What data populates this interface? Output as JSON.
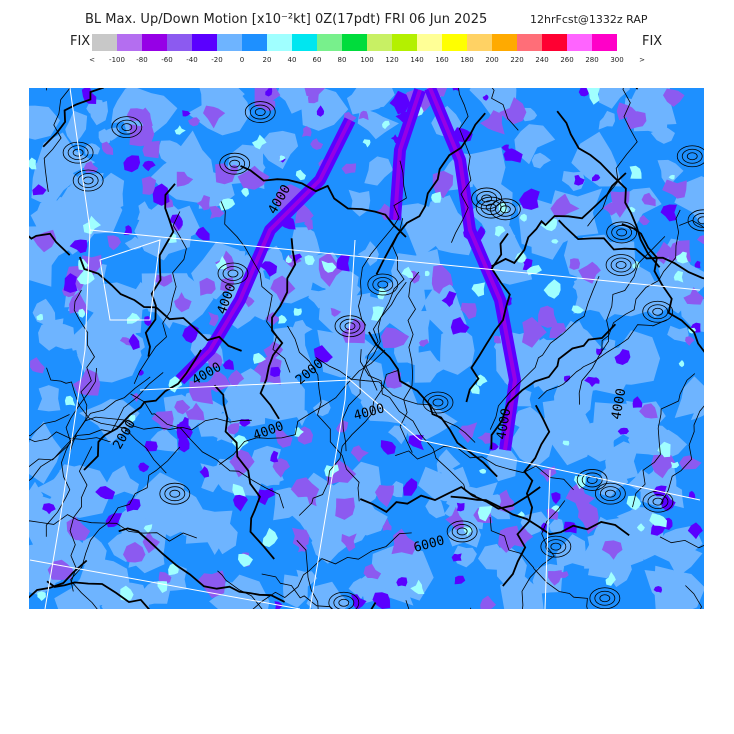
{
  "header": {
    "title": "BL Max. Up/Down Motion [x10⁻²kt] 0Z(17pdt) FRI 06 Jun 2025",
    "subtitle": "12hrFcst@1332z RAP"
  },
  "colorbar": {
    "left_label": "FIX",
    "right_label": "FIX",
    "colors": [
      "#c8c8c8",
      "#b46ef0",
      "#9600e6",
      "#8c5af0",
      "#5a00ff",
      "#6eb4ff",
      "#1e90ff",
      "#a0ffff",
      "#00e6f0",
      "#78f08c",
      "#00dc3c",
      "#c8f064",
      "#b4f000",
      "#ffff96",
      "#ffff00",
      "#ffd264",
      "#ffaa00",
      "#ff6e78",
      "#ff0032",
      "#ff64ff",
      "#ff00c8"
    ],
    "labels": [
      "<",
      "-100",
      "-80",
      "-60",
      "-40",
      "-20",
      "0",
      "20",
      "40",
      "60",
      "80",
      "100",
      "120",
      "140",
      "160",
      "180",
      "200",
      "220",
      "240",
      "260",
      "280",
      "300",
      ">"
    ]
  },
  "map": {
    "contour_labels": [
      "4000",
      "4000",
      "4000",
      "2000",
      "4000",
      "4000",
      "6000",
      "4000",
      "4000",
      "2000"
    ]
  }
}
